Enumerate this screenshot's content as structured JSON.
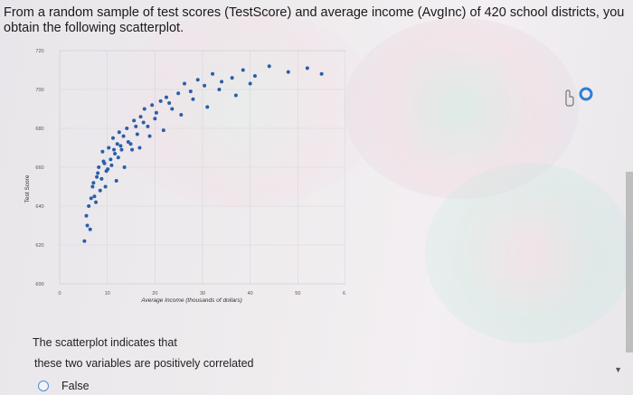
{
  "question": {
    "text": "From a random sample of test scores (TestScore) and average income (AvgInc) of 420 school districts, you obtain the following scatterplot."
  },
  "chart_data": {
    "type": "scatter",
    "xlabel": "Average Income (thousands of dollars)",
    "ylabel": "Test Score",
    "xlim": [
      0,
      60
    ],
    "ylim": [
      600,
      720
    ],
    "xticks": [
      "0",
      "10",
      "20",
      "30",
      "40",
      "50",
      "60"
    ],
    "yticks": [
      "600",
      "620",
      "640",
      "660",
      "680",
      "700",
      "720"
    ],
    "grid": true,
    "point_color": "#2a5ea8",
    "x": [
      5.2,
      5.6,
      6.1,
      6.4,
      6.9,
      7.3,
      7.8,
      8.2,
      8.5,
      9.0,
      9.4,
      9.8,
      10.3,
      10.7,
      11.2,
      11.6,
      12.1,
      12.5,
      13.0,
      13.4,
      14.1,
      14.9,
      15.6,
      16.3,
      17.0,
      17.8,
      18.5,
      19.4,
      20.3,
      21.2,
      22.4,
      23.6,
      24.9,
      26.2,
      27.5,
      29.0,
      30.4,
      32.1,
      34.0,
      36.2,
      38.5,
      41.0,
      44.0,
      48.0,
      52.0,
      55.0,
      5.8,
      6.6,
      7.1,
      7.6,
      8.0,
      8.8,
      9.2,
      9.6,
      10.1,
      10.9,
      11.4,
      11.9,
      12.3,
      12.8,
      13.6,
      14.4,
      15.2,
      16.0,
      16.8,
      17.6,
      18.9,
      20.0,
      21.8,
      23.0,
      25.5,
      28.0,
      31.0,
      33.5,
      37.0,
      40.0
    ],
    "y": [
      622,
      635,
      640,
      628,
      650,
      645,
      655,
      660,
      648,
      668,
      662,
      658,
      670,
      664,
      675,
      667,
      672,
      678,
      669,
      676,
      680,
      672,
      684,
      677,
      686,
      690,
      681,
      692,
      688,
      694,
      696,
      690,
      698,
      703,
      699,
      705,
      702,
      708,
      704,
      706,
      710,
      707,
      712,
      709,
      711,
      708,
      630,
      644,
      652,
      642,
      657,
      654,
      663,
      650,
      659,
      661,
      669,
      653,
      665,
      671,
      660,
      673,
      669,
      681,
      670,
      683,
      676,
      685,
      679,
      693,
      687,
      695,
      691,
      700,
      697,
      703
    ]
  },
  "prompts": {
    "line1": "The scatterplot indicates that",
    "line2": "these two variables are positively correlated"
  },
  "options": {
    "false_label": "False",
    "radio_color": "#4a90d9"
  },
  "icons": {
    "cursor": "hand-pointer-icon",
    "chevron": "chevron-down-icon"
  }
}
